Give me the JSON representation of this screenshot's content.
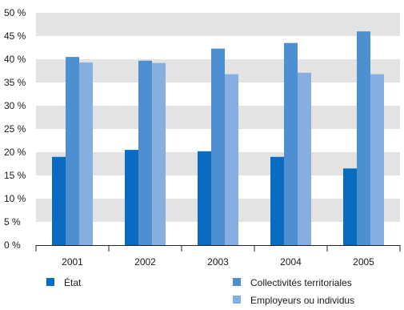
{
  "chart_data": {
    "type": "bar",
    "title": "",
    "xlabel": "",
    "ylabel": "",
    "categories": [
      "2001",
      "2002",
      "2003",
      "2004",
      "2005"
    ],
    "ylim": [
      0,
      50
    ],
    "yticks": [
      0,
      5,
      10,
      15,
      20,
      25,
      30,
      35,
      40,
      45,
      50
    ],
    "ytick_labels": [
      "0 %",
      "5 %",
      "10 %",
      "15 %",
      "20 %",
      "25 %",
      "30 %",
      "35 %",
      "40 %",
      "45 %",
      "50 %"
    ],
    "grid": "alternating horizontal bands",
    "legend_position": "bottom",
    "series": [
      {
        "name": "État",
        "color": "#0a6cc0",
        "values": [
          19.0,
          20.5,
          20.2,
          19.0,
          16.5
        ]
      },
      {
        "name": "Collectivités territoriales",
        "color": "#4d8fd1",
        "values": [
          40.5,
          39.7,
          42.3,
          43.5,
          46.0
        ]
      },
      {
        "name": "Employeurs ou individus",
        "color": "#86aee1",
        "values": [
          39.3,
          39.2,
          36.8,
          37.1,
          36.8
        ]
      }
    ]
  }
}
